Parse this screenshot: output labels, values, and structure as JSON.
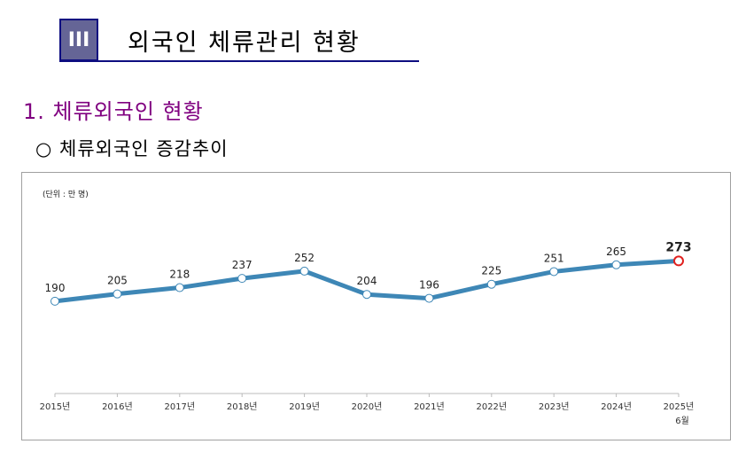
{
  "section": {
    "number": "III",
    "title": "외국인 체류관리 현황"
  },
  "heading": "1. 체류외국인 현황",
  "subheading": "○ 체류외국인 증감추이",
  "chart_data": {
    "type": "line",
    "title": "체류외국인 증감추이",
    "unit_label": "(단위 : 만 명)",
    "categories": [
      "2015년",
      "2016년",
      "2017년",
      "2018년",
      "2019년",
      "2020년",
      "2021년",
      "2022년",
      "2023년",
      "2024년",
      "2025년"
    ],
    "category_sublabels": {
      "10": "6월"
    },
    "series": [
      {
        "name": "체류외국인",
        "values": [
          190,
          205,
          218,
          237,
          252,
          204,
          196,
          225,
          251,
          265,
          273
        ]
      }
    ],
    "ylim": [
      0,
      400
    ],
    "grid": false,
    "colors": {
      "line": "#3e87b6",
      "highlight": "#e0201e"
    }
  }
}
